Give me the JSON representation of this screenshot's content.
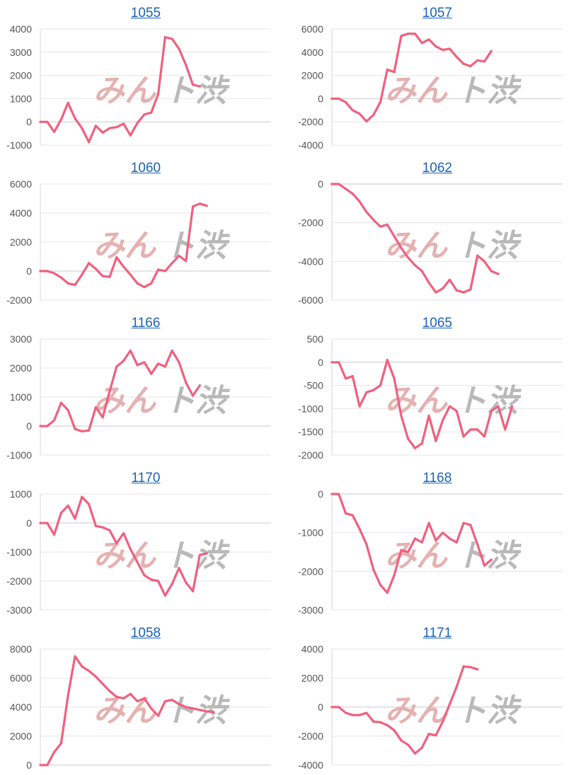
{
  "watermark": {
    "text_a": "みん",
    "text_b": "ト渋",
    "color_a": "#e5b1b1",
    "color_b": "#b9b9b9"
  },
  "line_color": "#f0607e",
  "link_color": "#1a62b5",
  "chart_data": [
    {
      "type": "line",
      "title": "1055",
      "yticks": [
        4000,
        3000,
        2000,
        1000,
        0,
        -1000
      ],
      "ylim": [
        -1000,
        4000
      ],
      "values": [
        0,
        0,
        -430,
        100,
        820,
        150,
        -270,
        -870,
        -170,
        -460,
        -270,
        -230,
        -80,
        -580,
        -50,
        320,
        400,
        1200,
        3650,
        3580,
        3150,
        2450,
        1600,
        1530
      ]
    },
    {
      "type": "line",
      "title": "1057",
      "yticks": [
        6000,
        4000,
        2000,
        0,
        -2000,
        -4000
      ],
      "ylim": [
        -4000,
        6000
      ],
      "values": [
        0,
        0,
        -300,
        -1000,
        -1300,
        -1950,
        -1400,
        -300,
        2500,
        2300,
        5400,
        5600,
        5600,
        4800,
        5100,
        4500,
        4200,
        4300,
        3600,
        3000,
        2800,
        3300,
        3200,
        4100
      ]
    },
    {
      "type": "line",
      "title": "1060",
      "yticks": [
        6000,
        4000,
        2000,
        0,
        -2000
      ],
      "ylim": [
        -2000,
        6000
      ],
      "values": [
        0,
        0,
        -150,
        -450,
        -850,
        -950,
        -250,
        550,
        150,
        -350,
        -400,
        950,
        300,
        -250,
        -850,
        -1100,
        -850,
        100,
        0,
        550,
        1050,
        700,
        4450,
        4650,
        4500
      ]
    },
    {
      "type": "line",
      "title": "1062",
      "yticks": [
        0,
        -2000,
        -4000,
        -6000
      ],
      "ylim": [
        -6000,
        0
      ],
      "values": [
        0,
        0,
        -250,
        -500,
        -900,
        -1450,
        -1850,
        -2200,
        -2100,
        -2700,
        -3300,
        -3800,
        -4200,
        -4500,
        -5100,
        -5600,
        -5400,
        -4950,
        -5500,
        -5600,
        -5450,
        -3700,
        -4000,
        -4500,
        -4650
      ]
    },
    {
      "type": "line",
      "title": "1166",
      "yticks": [
        3000,
        2000,
        1000,
        0,
        -1000
      ],
      "ylim": [
        -1000,
        3000
      ],
      "values": [
        0,
        0,
        200,
        800,
        550,
        -100,
        -180,
        -150,
        650,
        300,
        1200,
        2050,
        2250,
        2600,
        2100,
        2200,
        1800,
        2150,
        2050,
        2600,
        2200,
        1500,
        1050,
        1400
      ]
    },
    {
      "type": "line",
      "title": "1065",
      "yticks": [
        500,
        0,
        -500,
        -1000,
        -1500,
        -2000
      ],
      "ylim": [
        -2000,
        500
      ],
      "values": [
        0,
        0,
        -350,
        -300,
        -950,
        -650,
        -600,
        -500,
        50,
        -350,
        -1150,
        -1650,
        -1850,
        -1750,
        -1150,
        -1700,
        -1250,
        -950,
        -1050,
        -1600,
        -1450,
        -1450,
        -1600,
        -1050,
        -950,
        -1450,
        -950
      ]
    },
    {
      "type": "line",
      "title": "1170",
      "yticks": [
        1000,
        0,
        -1000,
        -2000,
        -3000
      ],
      "ylim": [
        -3000,
        1000
      ],
      "values": [
        0,
        0,
        -400,
        350,
        600,
        150,
        900,
        650,
        -100,
        -150,
        -250,
        -700,
        -350,
        -900,
        -1350,
        -1800,
        -1950,
        -2000,
        -2500,
        -2100,
        -1550,
        -2050,
        -2350,
        -1100,
        -1050
      ]
    },
    {
      "type": "line",
      "title": "1168",
      "yticks": [
        0,
        -1000,
        -2000,
        -3000
      ],
      "ylim": [
        -3000,
        0
      ],
      "values": [
        0,
        0,
        -500,
        -550,
        -900,
        -1300,
        -1950,
        -2350,
        -2550,
        -2100,
        -1450,
        -1500,
        -1150,
        -1250,
        -750,
        -1200,
        -1000,
        -1150,
        -1250,
        -750,
        -800,
        -1300,
        -1850,
        -1700
      ]
    },
    {
      "type": "line",
      "title": "1058",
      "yticks": [
        8000,
        6000,
        4000,
        2000,
        0
      ],
      "ylim": [
        0,
        8000
      ],
      "values": [
        0,
        0,
        900,
        1500,
        4800,
        7500,
        6800,
        6500,
        6100,
        5600,
        5100,
        4700,
        4600,
        4900,
        4400,
        4600,
        3900,
        3400,
        4400,
        4500,
        4200,
        4000,
        3900,
        3800,
        3700,
        3650
      ]
    },
    {
      "type": "line",
      "title": "1171",
      "yticks": [
        4000,
        2000,
        0,
        -2000,
        -4000
      ],
      "ylim": [
        -4000,
        4000
      ],
      "values": [
        0,
        0,
        -400,
        -550,
        -550,
        -400,
        -1000,
        -1050,
        -1250,
        -1600,
        -2300,
        -2600,
        -3200,
        -2800,
        -1850,
        -1950,
        -1000,
        200,
        1400,
        2800,
        2750,
        2600
      ]
    }
  ]
}
